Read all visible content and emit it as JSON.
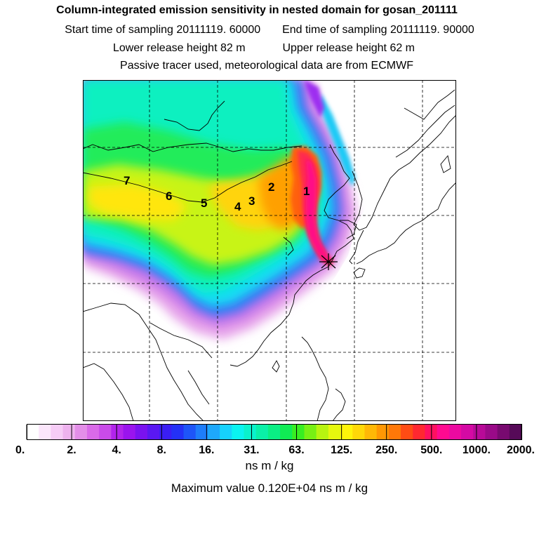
{
  "header": {
    "title": "Column-integrated emission sensitivity in nested domain for gosan_201111",
    "start_label": "Start time of sampling 20111119. 60000",
    "end_label": "End time of sampling 20111119. 90000",
    "lower_label": "Lower release height   82 m",
    "upper_label": "Upper release height   62 m",
    "tracer_note": "Passive tracer used, meteorological data are from ECMWF"
  },
  "map": {
    "cluster_labels": [
      {
        "id": "1",
        "text": "1"
      },
      {
        "id": "2",
        "text": "2"
      },
      {
        "id": "3",
        "text": "3"
      },
      {
        "id": "4",
        "text": "4"
      },
      {
        "id": "5",
        "text": "5"
      },
      {
        "id": "6",
        "text": "6"
      },
      {
        "id": "7",
        "text": "7"
      }
    ],
    "receptor_marker": "star"
  },
  "colorbar": {
    "tick_labels": [
      "0.",
      "2.",
      "4.",
      "8.",
      "16.",
      "31.",
      "63.",
      "125.",
      "250.",
      "500.",
      "1000.",
      "2000."
    ],
    "colors": [
      "#ffffff",
      "#fbe6fb",
      "#f6ccf6",
      "#eeb2ee",
      "#e38ee8",
      "#d96ae8",
      "#c94be9",
      "#b224ec",
      "#9a14ee",
      "#7a12f0",
      "#5a18f2",
      "#3a1ef4",
      "#2431f6",
      "#1e55f8",
      "#1e7dfa",
      "#1ea8fb",
      "#16d2fc",
      "#0af3f0",
      "#0af2cc",
      "#0af0a8",
      "#0aee84",
      "#10ec54",
      "#38ee22",
      "#78f014",
      "#b8f410",
      "#e6f80e",
      "#fff40a",
      "#ffd808",
      "#ffb806",
      "#ff9804",
      "#ff7808",
      "#ff4c14",
      "#ff2830",
      "#ff1060",
      "#ff0a90",
      "#ec0aa0",
      "#d40aa4",
      "#b80a98",
      "#9a0a88",
      "#780a70",
      "#560a58"
    ],
    "unit": "ns m / kg",
    "maximum_text": "Maximum value  0.120E+04 ns m / kg"
  }
}
